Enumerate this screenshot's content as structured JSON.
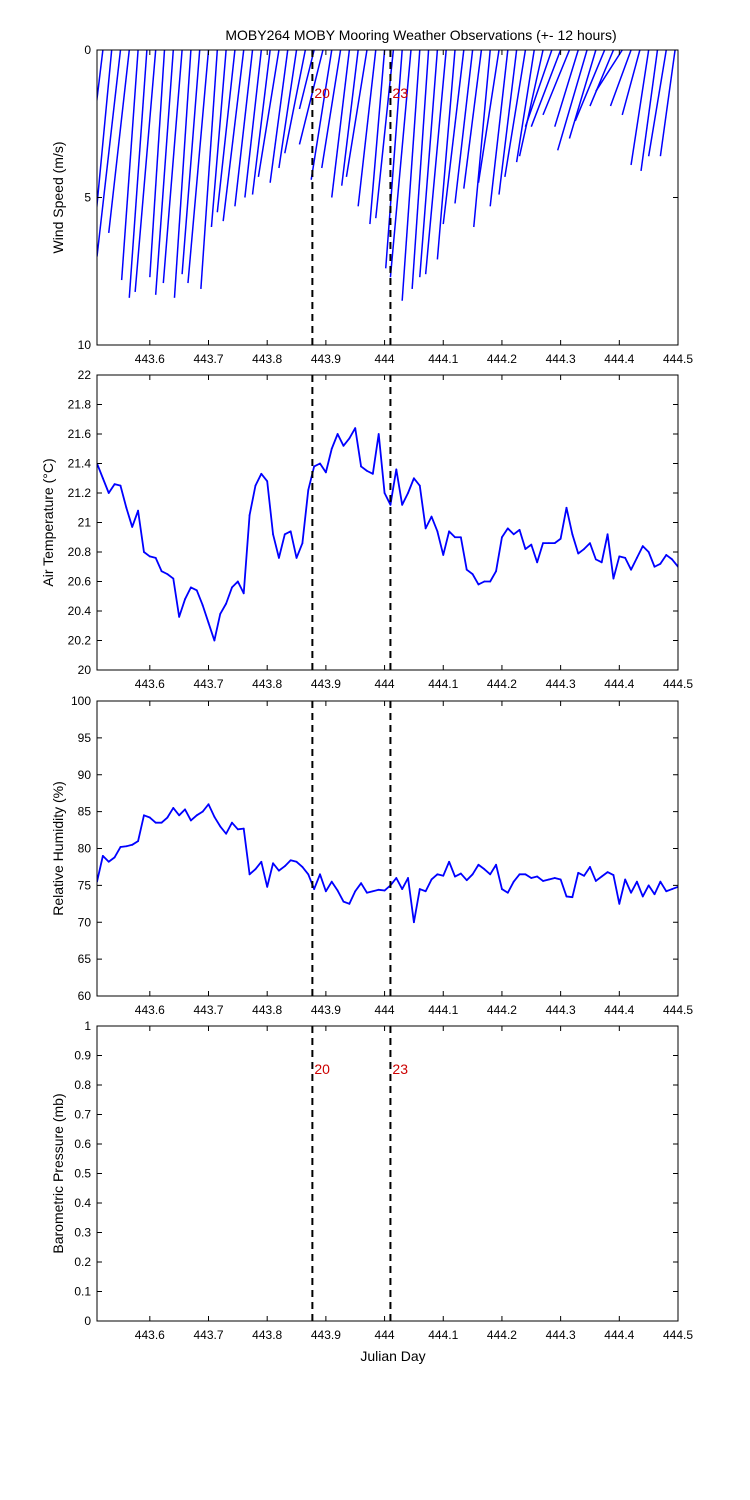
{
  "title": "MOBY264 MOBY Mooring Weather Observations (+- 12 hours)",
  "colors": {
    "series": "#0000ff",
    "marker_line": "#000000",
    "marker_text": "#cc0000",
    "axes": "#000000"
  },
  "xlabel": "Julian Day",
  "chart_data": [
    {
      "type": "line",
      "panel": "wind",
      "ylabel": "Wind Speed (m/s)",
      "xlim": [
        443.51,
        444.5
      ],
      "ylim": [
        0,
        10
      ],
      "y_reversed": true,
      "x_ticks": [
        443.6,
        443.7,
        443.8,
        443.9,
        444,
        444.1,
        444.2,
        444.3,
        444.4,
        444.5
      ],
      "y_ticks": [
        0,
        5,
        10
      ],
      "markers": [
        {
          "x": 443.877,
          "label": "20"
        },
        {
          "x": 444.01,
          "label": "23"
        }
      ],
      "series": [
        {
          "style": "wind-vectors",
          "x": [
            443.52,
            443.535,
            443.55,
            443.565,
            443.58,
            443.595,
            443.61,
            443.625,
            443.64,
            443.655,
            443.67,
            443.685,
            443.7,
            443.715,
            443.73,
            443.745,
            443.76,
            443.775,
            443.79,
            443.805,
            443.82,
            443.835,
            443.85,
            443.865,
            443.88,
            443.895,
            443.91,
            443.925,
            443.94,
            443.955,
            443.97,
            443.985,
            444.0,
            444.015,
            444.03,
            444.045,
            444.06,
            444.075,
            444.09,
            444.105,
            444.12,
            444.135,
            444.15,
            444.165,
            444.18,
            444.195,
            444.21,
            444.225,
            444.24,
            444.255,
            444.27,
            444.285,
            444.3,
            444.315,
            444.33,
            444.345,
            444.36,
            444.375,
            444.39,
            444.405,
            444.42,
            444.435,
            444.45,
            444.465,
            444.48,
            444.495
          ],
          "values": [
            5.8,
            6.3,
            7.0,
            6.2,
            7.8,
            8.4,
            8.2,
            7.7,
            8.3,
            7.9,
            8.4,
            7.6,
            7.9,
            8.1,
            6.0,
            5.5,
            5.8,
            5.3,
            5.0,
            4.9,
            4.3,
            4.5,
            4.0,
            3.5,
            2.0,
            3.2,
            4.4,
            4.0,
            5.0,
            4.6,
            4.3,
            5.3,
            5.9,
            5.7,
            7.4,
            7.7,
            8.5,
            8.1,
            7.7,
            7.6,
            7.1,
            5.9,
            5.2,
            4.7,
            6.0,
            4.5,
            5.3,
            4.9,
            4.3,
            3.8,
            3.6,
            2.6,
            2.6,
            2.2,
            2.6,
            3.4,
            3.0,
            2.4,
            1.9,
            1.4,
            1.9,
            2.2,
            3.9,
            4.1,
            3.6,
            3.6
          ],
          "tilt_days": [
            0.035,
            0.03,
            0.04,
            0.035,
            0.028,
            0.03,
            0.035,
            0.025,
            0.03,
            0.032,
            0.028,
            0.03,
            0.035,
            0.028,
            0.025,
            0.03,
            0.035,
            0.03,
            0.028,
            0.03,
            0.035,
            0.03,
            0.03,
            0.035,
            0.025,
            0.04,
            0.035,
            0.032,
            0.03,
            0.028,
            0.035,
            0.03,
            0.025,
            0.03,
            0.028,
            0.035,
            0.03,
            0.028,
            0.03,
            0.035,
            0.03,
            0.035,
            0.03,
            0.03,
            0.028,
            0.035,
            0.03,
            0.03,
            0.035,
            0.03,
            0.04,
            0.045,
            0.05,
            0.045,
            0.04,
            0.05,
            0.045,
            0.05,
            0.04,
            0.045,
            0.035,
            0.03,
            0.03,
            0.028,
            0.03,
            0.025
          ]
        }
      ]
    },
    {
      "type": "line",
      "panel": "air-temperature",
      "ylabel": "Air Temperature (°C)",
      "xlim": [
        443.51,
        444.5
      ],
      "ylim": [
        20,
        22
      ],
      "x_ticks": [
        443.6,
        443.7,
        443.8,
        443.9,
        444,
        444.1,
        444.2,
        444.3,
        444.4,
        444.5
      ],
      "y_ticks": [
        20,
        20.2,
        20.4,
        20.6,
        20.8,
        21,
        21.2,
        21.4,
        21.6,
        21.8,
        22
      ],
      "markers": [
        {
          "x": 443.877,
          "label": ""
        },
        {
          "x": 444.01,
          "label": ""
        }
      ],
      "series": [
        {
          "x": [
            443.51,
            443.52,
            443.53,
            443.54,
            443.55,
            443.56,
            443.57,
            443.58,
            443.59,
            443.6,
            443.61,
            443.62,
            443.63,
            443.64,
            443.65,
            443.66,
            443.67,
            443.68,
            443.69,
            443.7,
            443.71,
            443.72,
            443.73,
            443.74,
            443.75,
            443.76,
            443.77,
            443.78,
            443.79,
            443.8,
            443.81,
            443.82,
            443.83,
            443.84,
            443.85,
            443.86,
            443.87,
            443.88,
            443.89,
            443.9,
            443.91,
            443.92,
            443.93,
            443.94,
            443.95,
            443.96,
            443.97,
            443.98,
            443.99,
            444.0,
            444.01,
            444.02,
            444.03,
            444.04,
            444.05,
            444.06,
            444.07,
            444.08,
            444.09,
            444.1,
            444.11,
            444.12,
            444.13,
            444.14,
            444.15,
            444.16,
            444.17,
            444.18,
            444.19,
            444.2,
            444.21,
            444.22,
            444.23,
            444.24,
            444.25,
            444.26,
            444.27,
            444.28,
            444.29,
            444.3,
            444.31,
            444.32,
            444.33,
            444.34,
            444.35,
            444.36,
            444.37,
            444.38,
            444.39,
            444.4,
            444.41,
            444.42,
            444.43,
            444.44,
            444.45,
            444.46,
            444.47,
            444.48,
            444.49,
            444.5
          ],
          "values": [
            21.4,
            21.3,
            21.2,
            21.26,
            21.25,
            21.1,
            20.97,
            21.08,
            20.8,
            20.77,
            20.76,
            20.67,
            20.65,
            20.62,
            20.36,
            20.48,
            20.56,
            20.54,
            20.44,
            20.32,
            20.2,
            20.38,
            20.45,
            20.56,
            20.6,
            20.52,
            21.05,
            21.25,
            21.33,
            21.28,
            20.92,
            20.76,
            20.92,
            20.94,
            20.76,
            20.86,
            21.22,
            21.38,
            21.4,
            21.34,
            21.5,
            21.6,
            21.52,
            21.57,
            21.64,
            21.38,
            21.35,
            21.33,
            21.6,
            21.2,
            21.12,
            21.36,
            21.12,
            21.2,
            21.3,
            21.25,
            20.96,
            21.04,
            20.94,
            20.78,
            20.94,
            20.9,
            20.9,
            20.68,
            20.65,
            20.58,
            20.6,
            20.6,
            20.67,
            20.9,
            20.96,
            20.92,
            20.95,
            20.82,
            20.85,
            20.73,
            20.86,
            20.86,
            20.86,
            20.89,
            21.1,
            20.92,
            20.79,
            20.82,
            20.86,
            20.75,
            20.73,
            20.92,
            20.62,
            20.77,
            20.76,
            20.68,
            20.76,
            20.84,
            20.8,
            20.7,
            20.72,
            20.78,
            20.75,
            20.7
          ]
        }
      ]
    },
    {
      "type": "line",
      "panel": "relative-humidity",
      "ylabel": "Relative Humidity (%)",
      "xlim": [
        443.51,
        444.5
      ],
      "ylim": [
        60,
        100
      ],
      "x_ticks": [
        443.6,
        443.7,
        443.8,
        443.9,
        444,
        444.1,
        444.2,
        444.3,
        444.4,
        444.5
      ],
      "y_ticks": [
        60,
        65,
        70,
        75,
        80,
        85,
        90,
        95,
        100
      ],
      "markers": [
        {
          "x": 443.877,
          "label": ""
        },
        {
          "x": 444.01,
          "label": ""
        }
      ],
      "series": [
        {
          "x": [
            443.51,
            443.52,
            443.53,
            443.54,
            443.55,
            443.56,
            443.57,
            443.58,
            443.59,
            443.6,
            443.61,
            443.62,
            443.63,
            443.64,
            443.65,
            443.66,
            443.67,
            443.68,
            443.69,
            443.7,
            443.71,
            443.72,
            443.73,
            443.74,
            443.75,
            443.76,
            443.77,
            443.78,
            443.79,
            443.8,
            443.81,
            443.82,
            443.83,
            443.84,
            443.85,
            443.86,
            443.87,
            443.88,
            443.89,
            443.9,
            443.91,
            443.92,
            443.93,
            443.94,
            443.95,
            443.96,
            443.97,
            443.98,
            443.99,
            444.0,
            444.01,
            444.02,
            444.03,
            444.04,
            444.05,
            444.06,
            444.07,
            444.08,
            444.09,
            444.1,
            444.11,
            444.12,
            444.13,
            444.14,
            444.15,
            444.16,
            444.17,
            444.18,
            444.19,
            444.2,
            444.21,
            444.22,
            444.23,
            444.24,
            444.25,
            444.26,
            444.27,
            444.28,
            444.29,
            444.3,
            444.31,
            444.32,
            444.33,
            444.34,
            444.35,
            444.36,
            444.37,
            444.38,
            444.39,
            444.4,
            444.41,
            444.42,
            444.43,
            444.44,
            444.45,
            444.46,
            444.47,
            444.48,
            444.49,
            444.5
          ],
          "values": [
            75.5,
            79,
            78.2,
            78.8,
            80.2,
            80.3,
            80.5,
            81,
            84.5,
            84.2,
            83.5,
            83.5,
            84.2,
            85.5,
            84.5,
            85.3,
            83.8,
            84.5,
            85,
            86,
            84.3,
            83,
            82,
            83.5,
            82.6,
            82.7,
            76.5,
            77.2,
            78.2,
            74.8,
            78,
            77,
            77.6,
            78.4,
            78.2,
            77.5,
            76.5,
            74.5,
            76.5,
            74.2,
            75.5,
            74.3,
            72.8,
            72.5,
            74.2,
            75.3,
            74,
            74.2,
            74.4,
            74.3,
            75,
            76,
            74.5,
            76,
            70,
            74.5,
            74.2,
            75.8,
            76.5,
            76.3,
            78.2,
            76.2,
            76.6,
            75.7,
            76.5,
            77.8,
            77.2,
            76.5,
            77.8,
            74.5,
            74,
            75.5,
            76.5,
            76.5,
            76,
            76.2,
            75.6,
            75.8,
            76,
            75.8,
            73.5,
            73.4,
            76.7,
            76.3,
            77.5,
            75.6,
            76.2,
            76.8,
            76.4,
            72.5,
            75.8,
            74,
            75.5,
            73.5,
            75,
            73.8,
            75.5,
            74.2,
            74.5,
            74.8
          ]
        }
      ]
    },
    {
      "type": "line",
      "panel": "barometric-pressure",
      "ylabel": "Barometric Pressure (mb)",
      "xlim": [
        443.51,
        444.5
      ],
      "ylim": [
        0,
        1
      ],
      "x_ticks": [
        443.6,
        443.7,
        443.8,
        443.9,
        444,
        444.1,
        444.2,
        444.3,
        444.4,
        444.5
      ],
      "y_ticks": [
        0,
        0.1,
        0.2,
        0.3,
        0.4,
        0.5,
        0.6,
        0.7,
        0.8,
        0.9,
        1
      ],
      "markers": [
        {
          "x": 443.877,
          "label": "20"
        },
        {
          "x": 444.01,
          "label": "23"
        }
      ],
      "series": []
    }
  ]
}
